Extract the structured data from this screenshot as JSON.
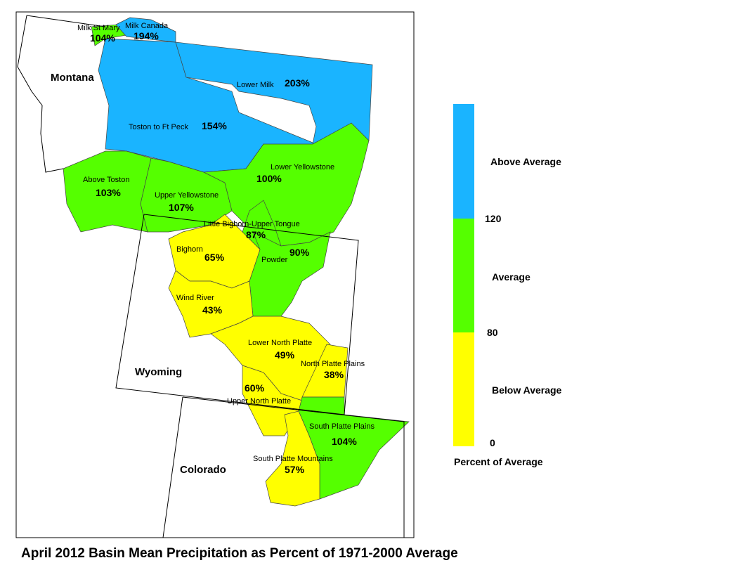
{
  "title": "April 2012 Basin Mean Precipitation as Percent of 1971-2000 Average",
  "states": [
    "Montana",
    "Wyoming",
    "Colorado"
  ],
  "basins": [
    {
      "name": "Milk St Mary",
      "percent": "104%",
      "color": "#55ff00"
    },
    {
      "name": "Milk Canada",
      "percent": "194%",
      "color": "#1ab4ff"
    },
    {
      "name": "Lower Milk",
      "percent": "203%",
      "color": "#1ab4ff"
    },
    {
      "name": "Toston to Ft Peck",
      "percent": "154%",
      "color": "#1ab4ff"
    },
    {
      "name": "Above Toston",
      "percent": "103%",
      "color": "#55ff00"
    },
    {
      "name": "Upper Yellowstone",
      "percent": "107%",
      "color": "#55ff00"
    },
    {
      "name": "Lower Yellowstone",
      "percent": "100%",
      "color": "#55ff00"
    },
    {
      "name": "Little Bighorn-Upper Tongue",
      "percent": "87%",
      "color": "#55ff00"
    },
    {
      "name": "Powder",
      "percent": "90%",
      "color": "#55ff00"
    },
    {
      "name": "Bighorn",
      "percent": "65%",
      "color": "#ffff00"
    },
    {
      "name": "Wind River",
      "percent": "43%",
      "color": "#ffff00"
    },
    {
      "name": "Lower North Platte",
      "percent": "49%",
      "color": "#ffff00"
    },
    {
      "name": "North Platte Plains",
      "percent": "38%",
      "color": "#ffff00"
    },
    {
      "name": "Upper North Platte",
      "percent": "60%",
      "color": "#ffff00"
    },
    {
      "name": "South Platte Plains",
      "percent": "104%",
      "color": "#55ff00"
    },
    {
      "name": "South Platte Mountains",
      "percent": "57%",
      "color": "#ffff00"
    }
  ],
  "legend": {
    "title": "Percent of Average",
    "classes": [
      {
        "label": "Above Average",
        "color": "#1ab4ff"
      },
      {
        "label": "Average",
        "color": "#55ff00"
      },
      {
        "label": "Below Average",
        "color": "#ffff00"
      }
    ],
    "ticks": [
      120,
      80,
      0
    ]
  }
}
